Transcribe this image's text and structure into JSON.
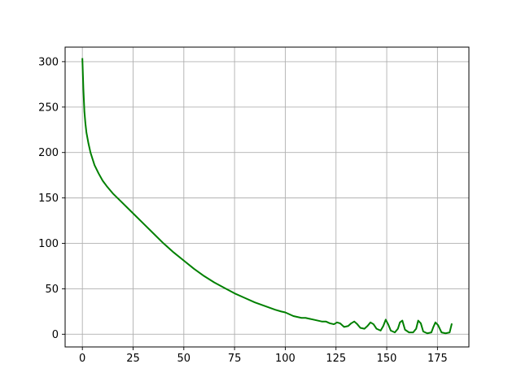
{
  "chart_data": {
    "type": "line",
    "title": "",
    "xlabel": "",
    "ylabel": "",
    "xlim": [
      -8.5,
      190.5
    ],
    "ylim": [
      -14,
      316
    ],
    "xticks": [
      0,
      25,
      50,
      75,
      100,
      125,
      150,
      175
    ],
    "yticks": [
      0,
      50,
      100,
      150,
      200,
      250,
      300
    ],
    "xtick_labels": [
      "0",
      "25",
      "50",
      "75",
      "100",
      "125",
      "150",
      "175"
    ],
    "ytick_labels": [
      "0",
      "50",
      "100",
      "150",
      "200",
      "250",
      "300"
    ],
    "grid": true,
    "legend": "none",
    "series": [
      {
        "color": "#008000",
        "x": [
          0,
          0.5,
          1,
          1.5,
          2,
          3,
          4,
          5,
          6,
          8,
          10,
          12,
          15,
          20,
          25,
          30,
          35,
          40,
          45,
          50,
          55,
          60,
          65,
          70,
          75,
          80,
          85,
          90,
          95,
          98,
          100,
          102,
          104,
          106,
          108,
          110,
          112,
          114,
          116,
          118,
          120,
          122,
          124,
          125.5,
          127,
          129,
          131,
          132.5,
          134,
          135.5,
          137,
          139,
          140.5,
          142,
          143.5,
          145,
          147,
          148.3,
          149.5,
          150.7,
          152,
          154,
          155.5,
          156.5,
          157.7,
          159,
          161,
          163,
          164.5,
          165.5,
          166.8,
          168,
          170,
          172,
          173,
          174,
          175.3,
          177,
          179,
          181,
          182
        ],
        "y": [
          303,
          270,
          245,
          232,
          222,
          210,
          200,
          193,
          186,
          177,
          169,
          163,
          155,
          144,
          133,
          122,
          111,
          100,
          90,
          81,
          72,
          64,
          57,
          51,
          45,
          40,
          35,
          31,
          27,
          25,
          24,
          22,
          20,
          19,
          18,
          18,
          17,
          16,
          15,
          14,
          14,
          12,
          11,
          13,
          12,
          8,
          9,
          12,
          14,
          11,
          7,
          6,
          9,
          13,
          11,
          6,
          4,
          9,
          16,
          11,
          4,
          2,
          6,
          13,
          15,
          5,
          2,
          2,
          6,
          15,
          12,
          3,
          1,
          2,
          8,
          13,
          10,
          2,
          1,
          2,
          11
        ]
      }
    ]
  }
}
